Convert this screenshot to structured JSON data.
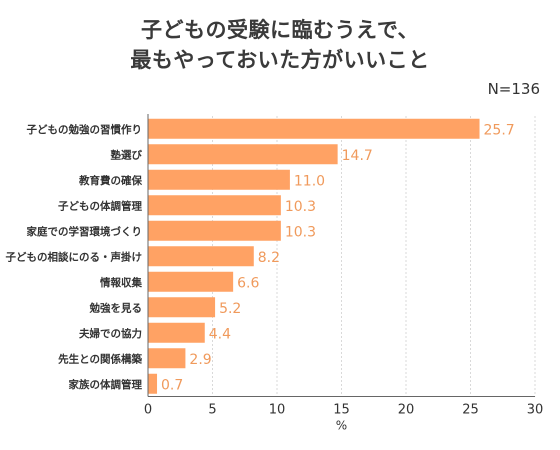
{
  "title_lines": [
    "子どもの受験に臨むうえで、",
    "最もやっておいた方がいいこと"
  ],
  "sample_label": "N=136",
  "colors": {
    "bar": "#ffa264",
    "value_label": "#f09a5c",
    "grid": "#d9d9d9",
    "axis": "#666666"
  },
  "chart_data": {
    "type": "bar",
    "orientation": "horizontal",
    "title": "子どもの受験に臨むうえで、最もやっておいた方がいいこと",
    "categories": [
      "子どもの勉強の習慣作り",
      "塾選び",
      "教育費の確保",
      "子どもの体調管理",
      "家庭での学習環境づくり",
      "子どもの相談にのる・声掛け",
      "情報収集",
      "勉強を見る",
      "夫婦での協力",
      "先生との関係構築",
      "家族の体調管理"
    ],
    "values": [
      25.7,
      14.7,
      11.0,
      10.3,
      10.3,
      8.2,
      6.6,
      5.2,
      4.4,
      2.9,
      0.7
    ],
    "value_labels": [
      "25.7",
      "14.7",
      "11.0",
      "10.3",
      "10.3",
      "8.2",
      "6.6",
      "5.2",
      "4.4",
      "2.9",
      "0.7"
    ],
    "xlabel": "%",
    "ylabel": "",
    "xlim": [
      0,
      30
    ],
    "x_ticks": [
      0,
      5,
      10,
      15,
      20,
      25,
      30
    ],
    "grid": "vertical-dashed"
  }
}
